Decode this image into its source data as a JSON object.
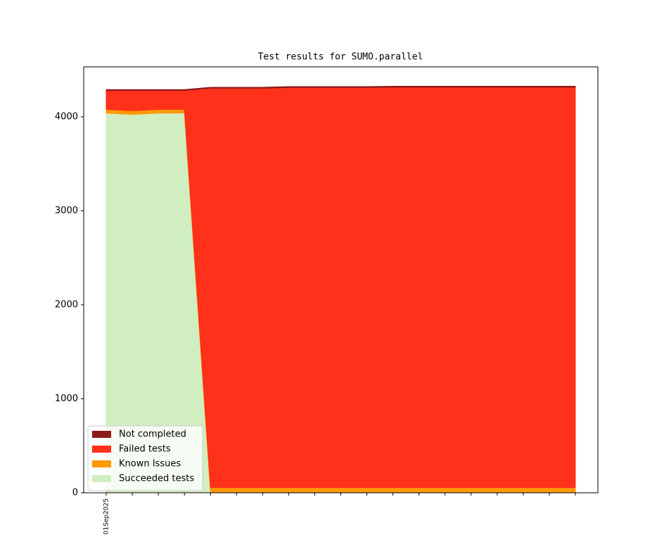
{
  "chart_data": {
    "type": "stacked_area",
    "title": "Test results for SUMO.parallel",
    "categories": [
      "01Sep2025",
      null,
      null,
      null,
      null,
      null,
      null,
      null,
      null,
      null,
      null,
      null,
      null,
      null,
      null,
      null,
      null,
      null,
      null
    ],
    "series": [
      {
        "name": "Not completed",
        "color": "#8e1b1b",
        "values": [
          10,
          10,
          10,
          10,
          10,
          10,
          10,
          10,
          10,
          10,
          10,
          10,
          10,
          10,
          10,
          10,
          10,
          10,
          10
        ]
      },
      {
        "name": "Failed tests",
        "color": "#ff311b",
        "values": [
          200,
          215,
          200,
          200,
          4250,
          4250,
          4250,
          4257,
          4257,
          4257,
          4257,
          4261,
          4261,
          4261,
          4261,
          4261,
          4261,
          4261,
          4261
        ]
      },
      {
        "name": "Known Issues",
        "color": "#ff9900",
        "values": [
          40,
          40,
          40,
          40,
          55,
          55,
          55,
          55,
          55,
          55,
          55,
          55,
          55,
          55,
          55,
          55,
          55,
          55,
          55
        ]
      },
      {
        "name": "Succeeded tests",
        "color": "#d0eec0",
        "values": [
          4040,
          4025,
          4040,
          4040,
          0,
          0,
          0,
          0,
          0,
          0,
          0,
          0,
          0,
          0,
          0,
          0,
          0,
          0,
          0
        ]
      }
    ],
    "ylim": [
      0,
      4532
    ],
    "yticks": [
      0,
      1000,
      2000,
      3000,
      4000
    ],
    "legend": "lower left"
  }
}
